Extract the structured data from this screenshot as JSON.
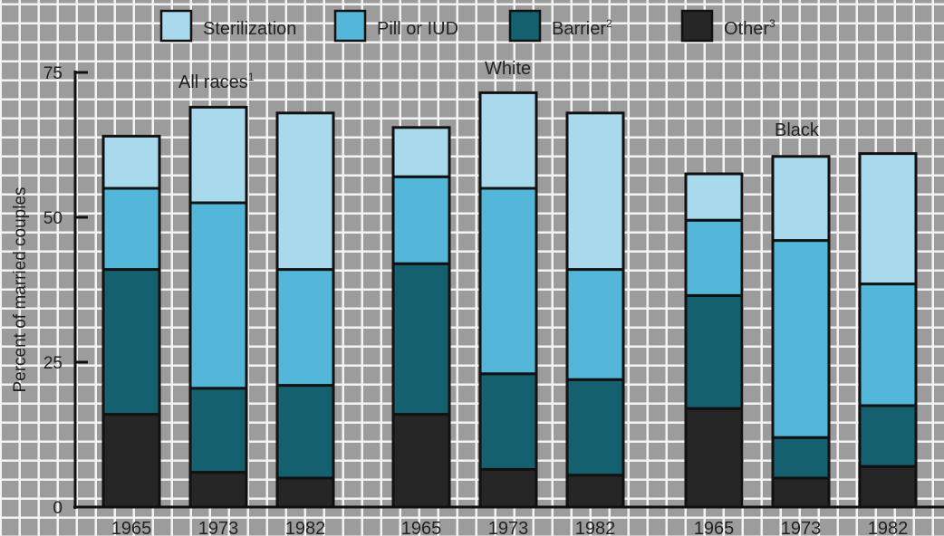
{
  "chart_data": {
    "type": "bar",
    "stacked": true,
    "ylabel": "Percent of married couples",
    "ylim": [
      0,
      75
    ],
    "yticks": [
      0,
      25,
      50,
      75
    ],
    "grid": true,
    "legend_position": "top",
    "series": [
      {
        "name": "Sterilization",
        "label": "Sterilization",
        "sup": "",
        "color": "#a9d9ec"
      },
      {
        "name": "Pill or IUD",
        "label": "Pill or IUD",
        "sup": "",
        "color": "#52b7d9"
      },
      {
        "name": "Barrier",
        "label": "Barrier",
        "sup": "2",
        "color": "#14606f"
      },
      {
        "name": "Other",
        "label": "Other",
        "sup": "3",
        "color": "#262626"
      }
    ],
    "groups": [
      {
        "label": "All races",
        "sup": "1",
        "bars": [
          {
            "year": "1965",
            "values": {
              "Other": 16,
              "Barrier": 25,
              "Pill or IUD": 14,
              "Sterilization": 9
            }
          },
          {
            "year": "1973",
            "values": {
              "Other": 6,
              "Barrier": 14.5,
              "Pill or IUD": 32,
              "Sterilization": 16.5
            }
          },
          {
            "year": "1982",
            "values": {
              "Other": 5,
              "Barrier": 16,
              "Pill or IUD": 20,
              "Sterilization": 27
            }
          }
        ]
      },
      {
        "label": "White",
        "sup": "",
        "bars": [
          {
            "year": "1965",
            "values": {
              "Other": 16,
              "Barrier": 26,
              "Pill or IUD": 15,
              "Sterilization": 8.5
            }
          },
          {
            "year": "1973",
            "values": {
              "Other": 6.5,
              "Barrier": 16.5,
              "Pill or IUD": 32,
              "Sterilization": 16.5
            }
          },
          {
            "year": "1982",
            "values": {
              "Other": 5.5,
              "Barrier": 16.5,
              "Pill or IUD": 19,
              "Sterilization": 27
            }
          }
        ]
      },
      {
        "label": "Black",
        "sup": "",
        "bars": [
          {
            "year": "1965",
            "values": {
              "Other": 17,
              "Barrier": 19.5,
              "Pill or IUD": 13,
              "Sterilization": 8
            }
          },
          {
            "year": "1973",
            "values": {
              "Other": 5,
              "Barrier": 7,
              "Pill or IUD": 34,
              "Sterilization": 14.5
            }
          },
          {
            "year": "1982",
            "values": {
              "Other": 7,
              "Barrier": 10.5,
              "Pill or IUD": 21,
              "Sterilization": 22.5
            }
          }
        ]
      }
    ]
  }
}
